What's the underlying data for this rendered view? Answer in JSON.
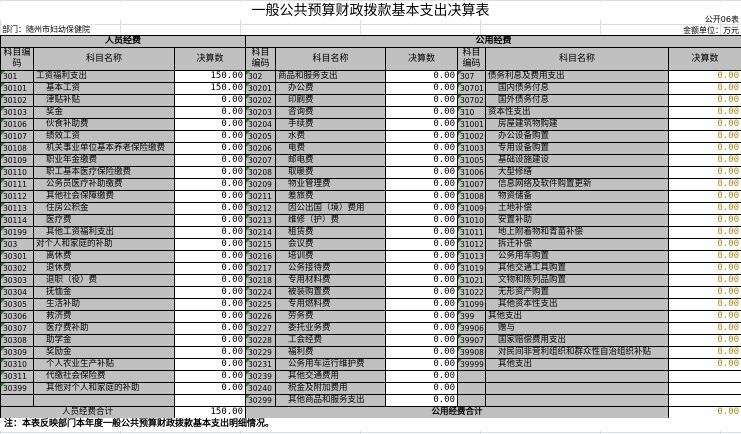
{
  "title": "一般公共预算财政拨款基本支出决算表",
  "form_no": "公开06表",
  "unit": "金额单位：万元",
  "department": "部门：随州市妇幼保健院",
  "groups": {
    "personnel": "人员经费",
    "public": "公用经费"
  },
  "columns": {
    "code": "科目编码",
    "name": "科目名称",
    "amount": "决算数"
  },
  "personnel_rows": [
    [
      "301",
      "工资福利支出",
      "150.00"
    ],
    [
      "30101",
      "基本工资",
      "150.00"
    ],
    [
      "30102",
      "津贴补贴",
      "0.00"
    ],
    [
      "30103",
      "奖金",
      "0.00"
    ],
    [
      "30106",
      "伙食补助费",
      "0.00"
    ],
    [
      "30107",
      "绩效工资",
      "0.00"
    ],
    [
      "30108",
      "机关事业单位基本养老保险缴费",
      "0.00"
    ],
    [
      "30109",
      "职业年金缴费",
      "0.00"
    ],
    [
      "30110",
      "职工基本医疗保险缴费",
      "0.00"
    ],
    [
      "30111",
      "公务员医疗补助缴费",
      "0.00"
    ],
    [
      "30112",
      "其他社会保障缴费",
      "0.00"
    ],
    [
      "30113",
      "住房公积金",
      "0.00"
    ],
    [
      "30114",
      "医疗费",
      "0.00"
    ],
    [
      "30199",
      "其他工资福利支出",
      "0.00"
    ],
    [
      "303",
      "对个人和家庭的补助",
      "0.00"
    ],
    [
      "30301",
      "离休费",
      "0.00"
    ],
    [
      "30302",
      "退休费",
      "0.00"
    ],
    [
      "30303",
      "退职（役）费",
      "0.00"
    ],
    [
      "30304",
      "抚恤金",
      "0.00"
    ],
    [
      "30305",
      "生活补助",
      "0.00"
    ],
    [
      "30306",
      "救济费",
      "0.00"
    ],
    [
      "30307",
      "医疗费补助",
      "0.00"
    ],
    [
      "30308",
      "助学金",
      "0.00"
    ],
    [
      "30309",
      "奖励金",
      "0.00"
    ],
    [
      "30310",
      "个人农业生产补贴",
      "0.00"
    ],
    [
      "30311",
      "代缴社会保险费",
      "0.00"
    ],
    [
      "30399",
      "其他对个人和家庭的补助",
      "0.00"
    ],
    [
      "",
      "",
      ""
    ]
  ],
  "public_rows_a": [
    [
      "302",
      "商品和服务支出",
      "0.00"
    ],
    [
      "30201",
      "办公费",
      "0.00"
    ],
    [
      "30202",
      "印刷费",
      "0.00"
    ],
    [
      "30203",
      "咨询费",
      "0.00"
    ],
    [
      "30204",
      "手续费",
      "0.00"
    ],
    [
      "30205",
      "水费",
      "0.00"
    ],
    [
      "30206",
      "电费",
      "0.00"
    ],
    [
      "30207",
      "邮电费",
      "0.00"
    ],
    [
      "30208",
      "取暖费",
      "0.00"
    ],
    [
      "30209",
      "物业管理费",
      "0.00"
    ],
    [
      "30211",
      "差旅费",
      "0.00"
    ],
    [
      "30212",
      "因公出国（境）费用",
      "0.00"
    ],
    [
      "30213",
      "维修（护）费",
      "0.00"
    ],
    [
      "30214",
      "租赁费",
      "0.00"
    ],
    [
      "30215",
      "会议费",
      "0.00"
    ],
    [
      "30216",
      "培训费",
      "0.00"
    ],
    [
      "30217",
      "公务接待费",
      "0.00"
    ],
    [
      "30218",
      "专用材料费",
      "0.00"
    ],
    [
      "30224",
      "被装购置费",
      "0.00"
    ],
    [
      "30225",
      "专用燃料费",
      "0.00"
    ],
    [
      "30226",
      "劳务费",
      "0.00"
    ],
    [
      "30227",
      "委托业务费",
      "0.00"
    ],
    [
      "30228",
      "工会经费",
      "0.00"
    ],
    [
      "30229",
      "福利费",
      "0.00"
    ],
    [
      "30231",
      "公务用车运行维护费",
      "0.00"
    ],
    [
      "30239",
      "其他交通费用",
      "0.00"
    ],
    [
      "30240",
      "税金及附加费用",
      "0.00"
    ],
    [
      "30299",
      "其他商品和服务支出",
      "0.00"
    ]
  ],
  "public_rows_b": [
    [
      "307",
      "债务利息及费用支出",
      "0.00"
    ],
    [
      "30701",
      "国内债务付息",
      "0.00"
    ],
    [
      "30702",
      "国外债务付息",
      "0.00"
    ],
    [
      "310",
      "资本性支出",
      "0.00"
    ],
    [
      "31001",
      "房屋建筑物购建",
      "0.00"
    ],
    [
      "31002",
      "办公设备购置",
      "0.00"
    ],
    [
      "31003",
      "专用设备购置",
      "0.00"
    ],
    [
      "31005",
      "基础设施建设",
      "0.00"
    ],
    [
      "31006",
      "大型修缮",
      "0.00"
    ],
    [
      "31007",
      "信息网络及软件购置更新",
      "0.00"
    ],
    [
      "31008",
      "物资储备",
      "0.00"
    ],
    [
      "31009",
      "土地补偿",
      "0.00"
    ],
    [
      "31010",
      "安置补助",
      "0.00"
    ],
    [
      "31011",
      "地上附着物和青苗补偿",
      "0.00"
    ],
    [
      "31012",
      "拆迁补偿",
      "0.00"
    ],
    [
      "31013",
      "公务用车购置",
      "0.00"
    ],
    [
      "31019",
      "其他交通工具购置",
      "0.00"
    ],
    [
      "31021",
      "文物和陈列品购置",
      "0.00"
    ],
    [
      "31022",
      "无形资产购置",
      "0.00"
    ],
    [
      "31099",
      "其他资本性支出",
      "0.00"
    ],
    [
      "399",
      "其他支出",
      "0.00"
    ],
    [
      "39906",
      "赠与",
      "0.00"
    ],
    [
      "39907",
      "国家赔偿费用支出",
      "0.00"
    ],
    [
      "39908",
      "对民间非营利组织和群众性自治组织补贴",
      "0.00"
    ],
    [
      "39999",
      "其他支出",
      "0.00"
    ],
    [
      "",
      "",
      ""
    ],
    [
      "",
      "",
      ""
    ],
    [
      "",
      "",
      ""
    ]
  ],
  "totals": {
    "personnel_label": "人员经费合计",
    "personnel_value": "150.00",
    "public_label": "公用经费合计",
    "public_value": "0.00"
  },
  "note": "注：本表反映部门本年度一般公共预算财政拨款基本支出明细情况。"
}
